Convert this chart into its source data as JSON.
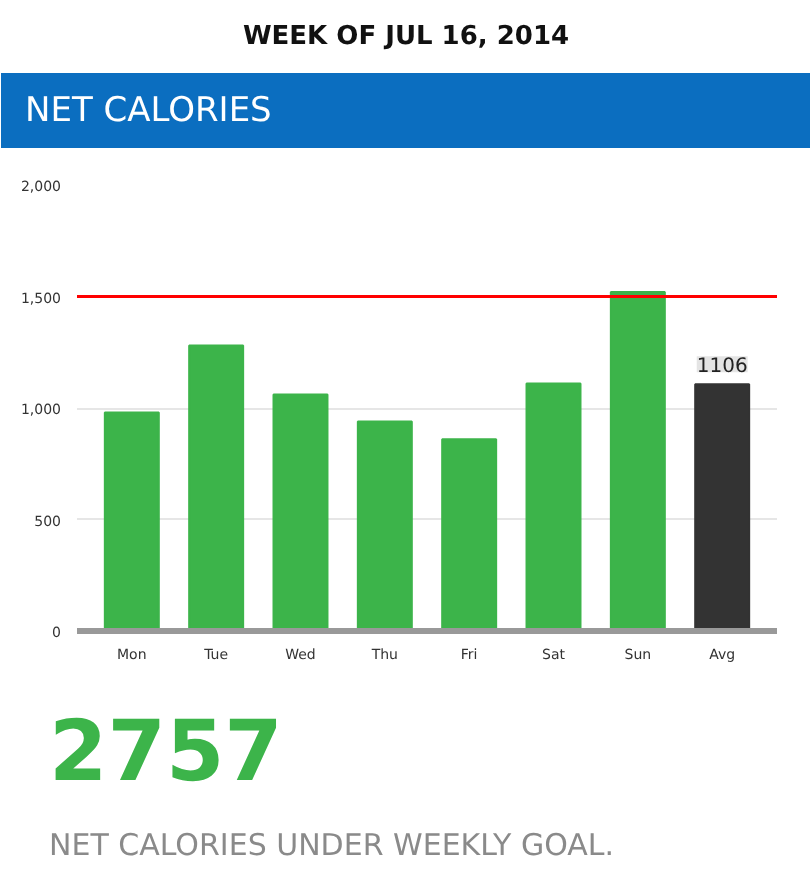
{
  "chart_data": {
    "type": "bar",
    "title": "WEEK OF JUL 16, 2014",
    "subtitle": "NET CALORIES",
    "annotations": [
      "2757",
      "NET CALORIES UNDER WEEKLY GOAL."
    ],
    "categories": [
      "Mon",
      "Tue",
      "Wed",
      "Thu",
      "Fri",
      "Sat",
      "Sun",
      "Avg"
    ],
    "values": [
      980,
      1280,
      1060,
      940,
      860,
      1110,
      1520,
      1106
    ],
    "colors": [
      "#3cb44a",
      "#3cb44a",
      "#3cb44a",
      "#3cb44a",
      "#3cb44a",
      "#3cb44a",
      "#3cb44a",
      "#333333"
    ],
    "value_labels": [
      null,
      null,
      null,
      null,
      null,
      null,
      null,
      "1106"
    ],
    "ylim": [
      0,
      2000
    ],
    "yticks": [
      0,
      500,
      {
        "value": 1000,
        "label": "1,000"
      },
      {
        "value": 1500,
        "label": "1,500"
      },
      {
        "value": 2000,
        "label": "2,000"
      }
    ],
    "grid": "y",
    "ref_lines": [
      {
        "axis": "y",
        "value": 1500,
        "color": "#ff0000"
      }
    ]
  }
}
